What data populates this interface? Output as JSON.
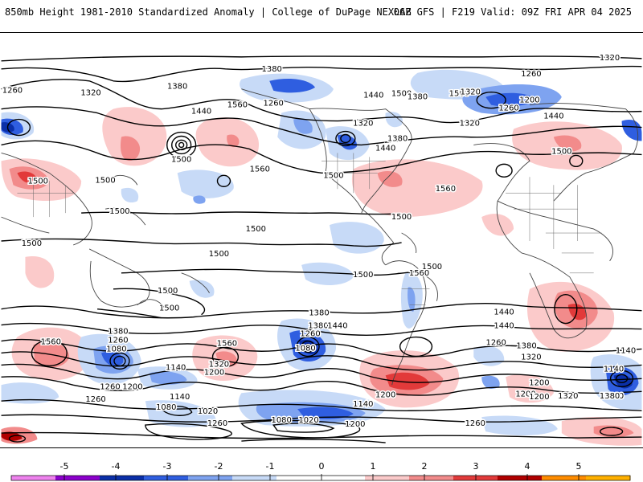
{
  "header": {
    "left": "850mb Height 1981-2010 Standardized Anomaly | College of DuPage NEXLAB",
    "right": "06Z GFS | F219 Valid: 09Z FRI APR 04 2025"
  },
  "colorbar": {
    "ticks": [
      "-5",
      "-4",
      "-3",
      "-2",
      "-1",
      "0",
      "1",
      "2",
      "3",
      "4",
      "5"
    ],
    "colors": [
      "#ee82ee",
      "#8b00cc",
      "#0a2fa8",
      "#2f5ee0",
      "#7ea3f0",
      "#c7daf7",
      "#ffffff",
      "#ffffff",
      "#fbcaca",
      "#f28b8b",
      "#e23a3a",
      "#b00000",
      "#ff8c00",
      "#ffb000"
    ]
  },
  "contour_labels": [
    {
      "text": "1320"
    },
    {
      "text": "1260"
    },
    {
      "text": "1320"
    },
    {
      "text": "1380"
    },
    {
      "text": "1380"
    },
    {
      "text": "1440"
    },
    {
      "text": "1500"
    },
    {
      "text": "1440"
    },
    {
      "text": "1500"
    },
    {
      "text": "1560"
    },
    {
      "text": "1260"
    },
    {
      "text": "1320"
    },
    {
      "text": "1380"
    },
    {
      "text": "1440"
    },
    {
      "text": "1500"
    },
    {
      "text": "1500"
    },
    {
      "text": "1260"
    },
    {
      "text": "1320"
    },
    {
      "text": "1260"
    },
    {
      "text": "1200"
    },
    {
      "text": "1320"
    },
    {
      "text": "1440"
    },
    {
      "text": "1380"
    },
    {
      "text": "1560"
    },
    {
      "text": "1500"
    },
    {
      "text": "1560"
    },
    {
      "text": "1500"
    },
    {
      "text": "1500"
    },
    {
      "text": "1500"
    },
    {
      "text": "1500"
    },
    {
      "text": "1500"
    },
    {
      "text": "1500"
    },
    {
      "text": "1500"
    },
    {
      "text": "1500"
    },
    {
      "text": "1500"
    },
    {
      "text": "1560"
    },
    {
      "text": "1500"
    },
    {
      "text": "1500"
    },
    {
      "text": "1440"
    },
    {
      "text": "1440"
    },
    {
      "text": "1380"
    },
    {
      "text": "1560"
    },
    {
      "text": "1380"
    },
    {
      "text": "1260"
    },
    {
      "text": "1080"
    },
    {
      "text": "1380"
    },
    {
      "text": "1260"
    },
    {
      "text": "1140"
    },
    {
      "text": "1200"
    },
    {
      "text": "1320"
    },
    {
      "text": "1260"
    },
    {
      "text": "1200"
    },
    {
      "text": "1140"
    },
    {
      "text": "1080"
    },
    {
      "text": "1020"
    },
    {
      "text": "1560"
    },
    {
      "text": "1380"
    },
    {
      "text": "1260"
    },
    {
      "text": "1080"
    },
    {
      "text": "1140"
    },
    {
      "text": "1200"
    },
    {
      "text": "1440"
    },
    {
      "text": "1200"
    },
    {
      "text": "1140"
    },
    {
      "text": "1080"
    },
    {
      "text": "1020"
    },
    {
      "text": "1200"
    },
    {
      "text": "1260"
    },
    {
      "text": "1260"
    },
    {
      "text": "1380"
    },
    {
      "text": "1320"
    },
    {
      "text": "1200"
    },
    {
      "text": "1200"
    },
    {
      "text": "1320"
    },
    {
      "text": "1380"
    },
    {
      "text": "1140"
    },
    {
      "text": "1260"
    }
  ]
}
